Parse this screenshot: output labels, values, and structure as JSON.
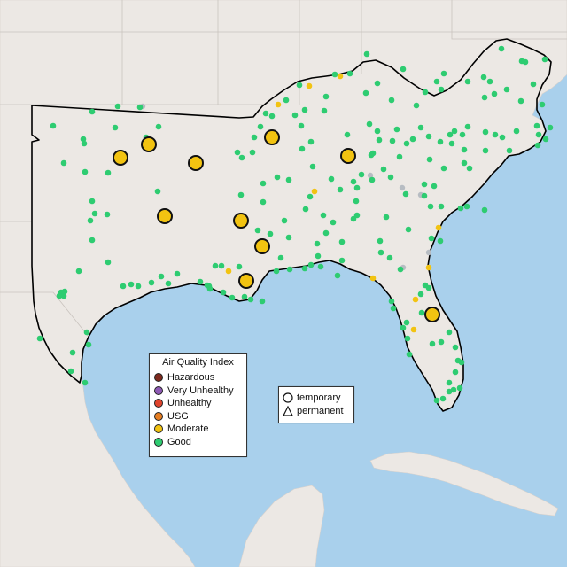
{
  "legend": {
    "title": "Air Quality Index",
    "levels": [
      {
        "label": "Hazardous",
        "color": "#7e2a1e"
      },
      {
        "label": "Very Unhealthy",
        "color": "#8f5ab5"
      },
      {
        "label": "Unhealthy",
        "color": "#e0432c"
      },
      {
        "label": "USG",
        "color": "#e67e22"
      },
      {
        "label": "Moderate",
        "color": "#f2c311"
      },
      {
        "label": "Good",
        "color": "#2ecc71"
      }
    ]
  },
  "shape_legend": {
    "temporary": "temporary",
    "permanent": "permanent"
  },
  "colors": {
    "water": "#a9d0ec",
    "land": "#ece8e4",
    "region_outline": "#000000"
  },
  "stations": {
    "moderate_large": [
      [
        136,
        178
      ],
      [
        168,
        163
      ],
      [
        221,
        184
      ],
      [
        186,
        244
      ],
      [
        272,
        249
      ],
      [
        296,
        278
      ],
      [
        278,
        317
      ],
      [
        307,
        155
      ],
      [
        393,
        176
      ],
      [
        488,
        355
      ]
    ],
    "moderate_small": [
      [
        384,
        86
      ],
      [
        349,
        97
      ],
      [
        314,
        118
      ],
      [
        355,
        216
      ],
      [
        495,
        257
      ],
      [
        484,
        302
      ],
      [
        421,
        314
      ],
      [
        469,
        338
      ],
      [
        467,
        372
      ],
      [
        258,
        306
      ]
    ],
    "good": [
      [
        60,
        142
      ],
      [
        104,
        126
      ],
      [
        130,
        144
      ],
      [
        133,
        120
      ],
      [
        158,
        121
      ],
      [
        179,
        143
      ],
      [
        165,
        155
      ],
      [
        94,
        157
      ],
      [
        95,
        162
      ],
      [
        72,
        184
      ],
      [
        96,
        194
      ],
      [
        122,
        195
      ],
      [
        178,
        216
      ],
      [
        104,
        227
      ],
      [
        107,
        241
      ],
      [
        102,
        249
      ],
      [
        121,
        242
      ],
      [
        104,
        271
      ],
      [
        89,
        306
      ],
      [
        122,
        296
      ],
      [
        69,
        330
      ],
      [
        72,
        334
      ],
      [
        67,
        334
      ],
      [
        73,
        329
      ],
      [
        45,
        382
      ],
      [
        82,
        398
      ],
      [
        98,
        375
      ],
      [
        100,
        389
      ],
      [
        80,
        419
      ],
      [
        96,
        432
      ],
      [
        139,
        323
      ],
      [
        148,
        321
      ],
      [
        156,
        323
      ],
      [
        171,
        319
      ],
      [
        182,
        312
      ],
      [
        190,
        320
      ],
      [
        200,
        309
      ],
      [
        226,
        318
      ],
      [
        236,
        323
      ],
      [
        252,
        330
      ],
      [
        262,
        336
      ],
      [
        276,
        335
      ],
      [
        283,
        338
      ],
      [
        296,
        340
      ],
      [
        312,
        306
      ],
      [
        327,
        304
      ],
      [
        344,
        303
      ],
      [
        351,
        299
      ],
      [
        362,
        301
      ],
      [
        381,
        311
      ],
      [
        386,
        294
      ],
      [
        359,
        289
      ],
      [
        317,
        291
      ],
      [
        243,
        300
      ],
      [
        250,
        300
      ],
      [
        270,
        301
      ],
      [
        237,
        326
      ],
      [
        234,
        322
      ],
      [
        268,
        172
      ],
      [
        273,
        178
      ],
      [
        272,
        220
      ],
      [
        297,
        207
      ],
      [
        297,
        228
      ],
      [
        313,
        200
      ],
      [
        321,
        249
      ],
      [
        326,
        203
      ],
      [
        333,
        130
      ],
      [
        340,
        142
      ],
      [
        344,
        124
      ],
      [
        341,
        168
      ],
      [
        351,
        160
      ],
      [
        353,
        188
      ],
      [
        365,
        243
      ],
      [
        374,
        202
      ],
      [
        384,
        214
      ],
      [
        392,
        152
      ],
      [
        399,
        247
      ],
      [
        403,
        212
      ],
      [
        403,
        243
      ],
      [
        408,
        197
      ],
      [
        417,
        140
      ],
      [
        426,
        148
      ],
      [
        428,
        158
      ],
      [
        421,
        173
      ],
      [
        433,
        191
      ],
      [
        436,
        245
      ],
      [
        441,
        200
      ],
      [
        443,
        159
      ],
      [
        448,
        146
      ],
      [
        451,
        177
      ],
      [
        459,
        162
      ],
      [
        466,
        157
      ],
      [
        475,
        144
      ],
      [
        479,
        208
      ],
      [
        484,
        154
      ],
      [
        485,
        180
      ],
      [
        490,
        210
      ],
      [
        497,
        160
      ],
      [
        501,
        190
      ],
      [
        508,
        152
      ],
      [
        510,
        162
      ],
      [
        513,
        148
      ],
      [
        522,
        152
      ],
      [
        524,
        184
      ],
      [
        528,
        143
      ],
      [
        524,
        169
      ],
      [
        530,
        190
      ],
      [
        548,
        149
      ],
      [
        548,
        170
      ],
      [
        559,
        152
      ],
      [
        567,
        155
      ],
      [
        575,
        170
      ],
      [
        583,
        148
      ],
      [
        606,
        142
      ],
      [
        607,
        164
      ],
      [
        608,
        152
      ],
      [
        616,
        157
      ],
      [
        621,
        144
      ],
      [
        588,
        114
      ],
      [
        602,
        95
      ],
      [
        612,
        118
      ],
      [
        615,
        67
      ],
      [
        593,
        70
      ],
      [
        589,
        69
      ],
      [
        566,
        55
      ],
      [
        572,
        101
      ],
      [
        558,
        106
      ],
      [
        547,
        110
      ],
      [
        553,
        92
      ],
      [
        546,
        87
      ],
      [
        528,
        92
      ],
      [
        501,
        83
      ],
      [
        493,
        92
      ],
      [
        498,
        101
      ],
      [
        480,
        104
      ],
      [
        470,
        119
      ],
      [
        455,
        78
      ],
      [
        442,
        113
      ],
      [
        426,
        94
      ],
      [
        414,
        61
      ],
      [
        413,
        105
      ],
      [
        395,
        83
      ],
      [
        378,
        84
      ],
      [
        368,
        109
      ],
      [
        366,
        125
      ],
      [
        338,
        96
      ],
      [
        323,
        113
      ],
      [
        307,
        131
      ],
      [
        294,
        143
      ],
      [
        287,
        155
      ],
      [
        285,
        172
      ],
      [
        300,
        128
      ],
      [
        420,
        203
      ],
      [
        429,
        272
      ],
      [
        430,
        285
      ],
      [
        458,
        219
      ],
      [
        461,
        259
      ],
      [
        479,
        221
      ],
      [
        487,
        269
      ],
      [
        520,
        235
      ],
      [
        527,
        233
      ],
      [
        440,
        291
      ],
      [
        452,
        304
      ],
      [
        402,
        227
      ],
      [
        399,
        205
      ],
      [
        419,
        175
      ],
      [
        376,
        251
      ],
      [
        345,
        236
      ],
      [
        350,
        222
      ],
      [
        368,
        263
      ],
      [
        386,
        273
      ],
      [
        358,
        275
      ],
      [
        326,
        268
      ],
      [
        305,
        264
      ],
      [
        291,
        260
      ],
      [
        480,
        322
      ],
      [
        484,
        325
      ],
      [
        475,
        332
      ],
      [
        476,
        353
      ],
      [
        459,
        364
      ],
      [
        460,
        382
      ],
      [
        455,
        370
      ],
      [
        462,
        400
      ],
      [
        488,
        388
      ],
      [
        498,
        386
      ],
      [
        507,
        375
      ],
      [
        514,
        392
      ],
      [
        517,
        407
      ],
      [
        521,
        409
      ],
      [
        514,
        420
      ],
      [
        507,
        432
      ],
      [
        512,
        440
      ],
      [
        507,
        442
      ],
      [
        519,
        438
      ],
      [
        500,
        450
      ],
      [
        493,
        452
      ],
      [
        442,
        340
      ],
      [
        444,
        348
      ],
      [
        486,
        233
      ],
      [
        498,
        233
      ],
      [
        497,
        272
      ],
      [
        547,
        237
      ]
    ],
    "gray_markers": [
      [
        161,
        120
      ],
      [
        418,
        198
      ],
      [
        455,
        302
      ],
      [
        454,
        212
      ],
      [
        484,
        285
      ],
      [
        475,
        220
      ]
    ]
  }
}
